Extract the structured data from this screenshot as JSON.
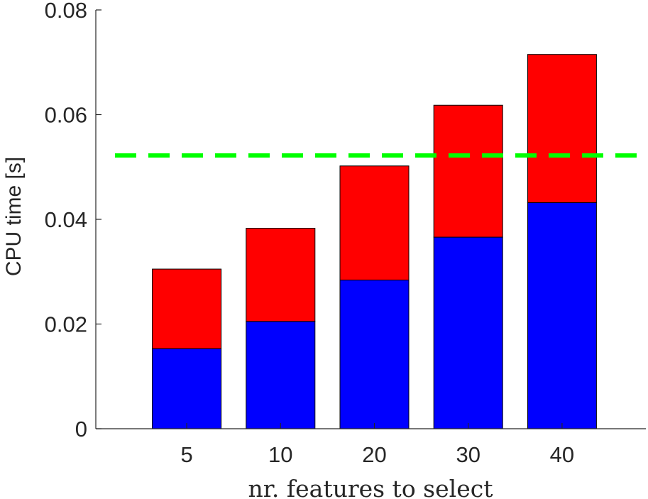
{
  "chart_data": {
    "type": "bar",
    "stacked": true,
    "categories": [
      "5",
      "10",
      "20",
      "30",
      "40"
    ],
    "series": [
      {
        "color": "#0000ff",
        "values": [
          0.0153,
          0.0205,
          0.0284,
          0.0366,
          0.0432
        ]
      },
      {
        "color": "#ff0000",
        "values": [
          0.0152,
          0.0178,
          0.0218,
          0.0252,
          0.0283
        ]
      }
    ],
    "reference_line": {
      "value": 0.0522,
      "color": "#00ff00",
      "style": "dashed"
    },
    "xlabel": "nr. features to select",
    "ylabel": "CPU time [s]",
    "ylim": [
      0,
      0.08
    ],
    "yticks": [
      0,
      0.02,
      0.04,
      0.06,
      0.08
    ],
    "ytick_labels": [
      "0",
      "0.02",
      "0.04",
      "0.06",
      "0.08"
    ],
    "grid": false,
    "legend": "none"
  }
}
